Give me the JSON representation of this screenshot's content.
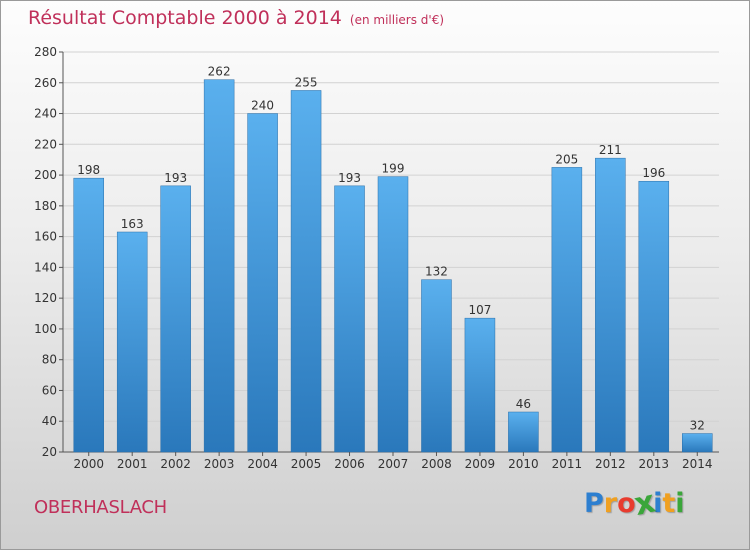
{
  "header": {
    "title": "Résultat Comptable 2000 à 2014",
    "subtitle": "(en milliers d'€)"
  },
  "commune": "OBERHASLACH",
  "logo": {
    "letters": [
      {
        "char": "P",
        "color": "#2d7fd0"
      },
      {
        "char": "r",
        "color": "#f0a020"
      },
      {
        "char": "o",
        "color": "#e83b2e"
      },
      {
        "char": "x",
        "color": "#3aa63a"
      },
      {
        "char": "i",
        "color": "#2d7fd0"
      },
      {
        "char": "t",
        "color": "#f0a020"
      },
      {
        "char": "i",
        "color": "#3aa63a"
      }
    ]
  },
  "colors": {
    "bar_top": "#5ab0ee",
    "bar_bottom": "#2a78bb",
    "title": "#c0305a"
  },
  "chart_data": {
    "type": "bar",
    "title": "Résultat Comptable 2000 à 2014",
    "subtitle": "(en milliers d'€)",
    "xlabel": "",
    "ylabel": "",
    "categories": [
      "2000",
      "2001",
      "2002",
      "2003",
      "2004",
      "2005",
      "2006",
      "2007",
      "2008",
      "2009",
      "2010",
      "2011",
      "2012",
      "2013",
      "2014"
    ],
    "values": [
      198,
      163,
      193,
      262,
      240,
      255,
      193,
      199,
      132,
      107,
      46,
      205,
      211,
      196,
      32
    ],
    "ylim": [
      20,
      280
    ],
    "yticks": [
      20,
      40,
      60,
      80,
      100,
      120,
      140,
      160,
      180,
      200,
      220,
      240,
      260,
      280
    ],
    "grid": true,
    "data_labels": true
  }
}
